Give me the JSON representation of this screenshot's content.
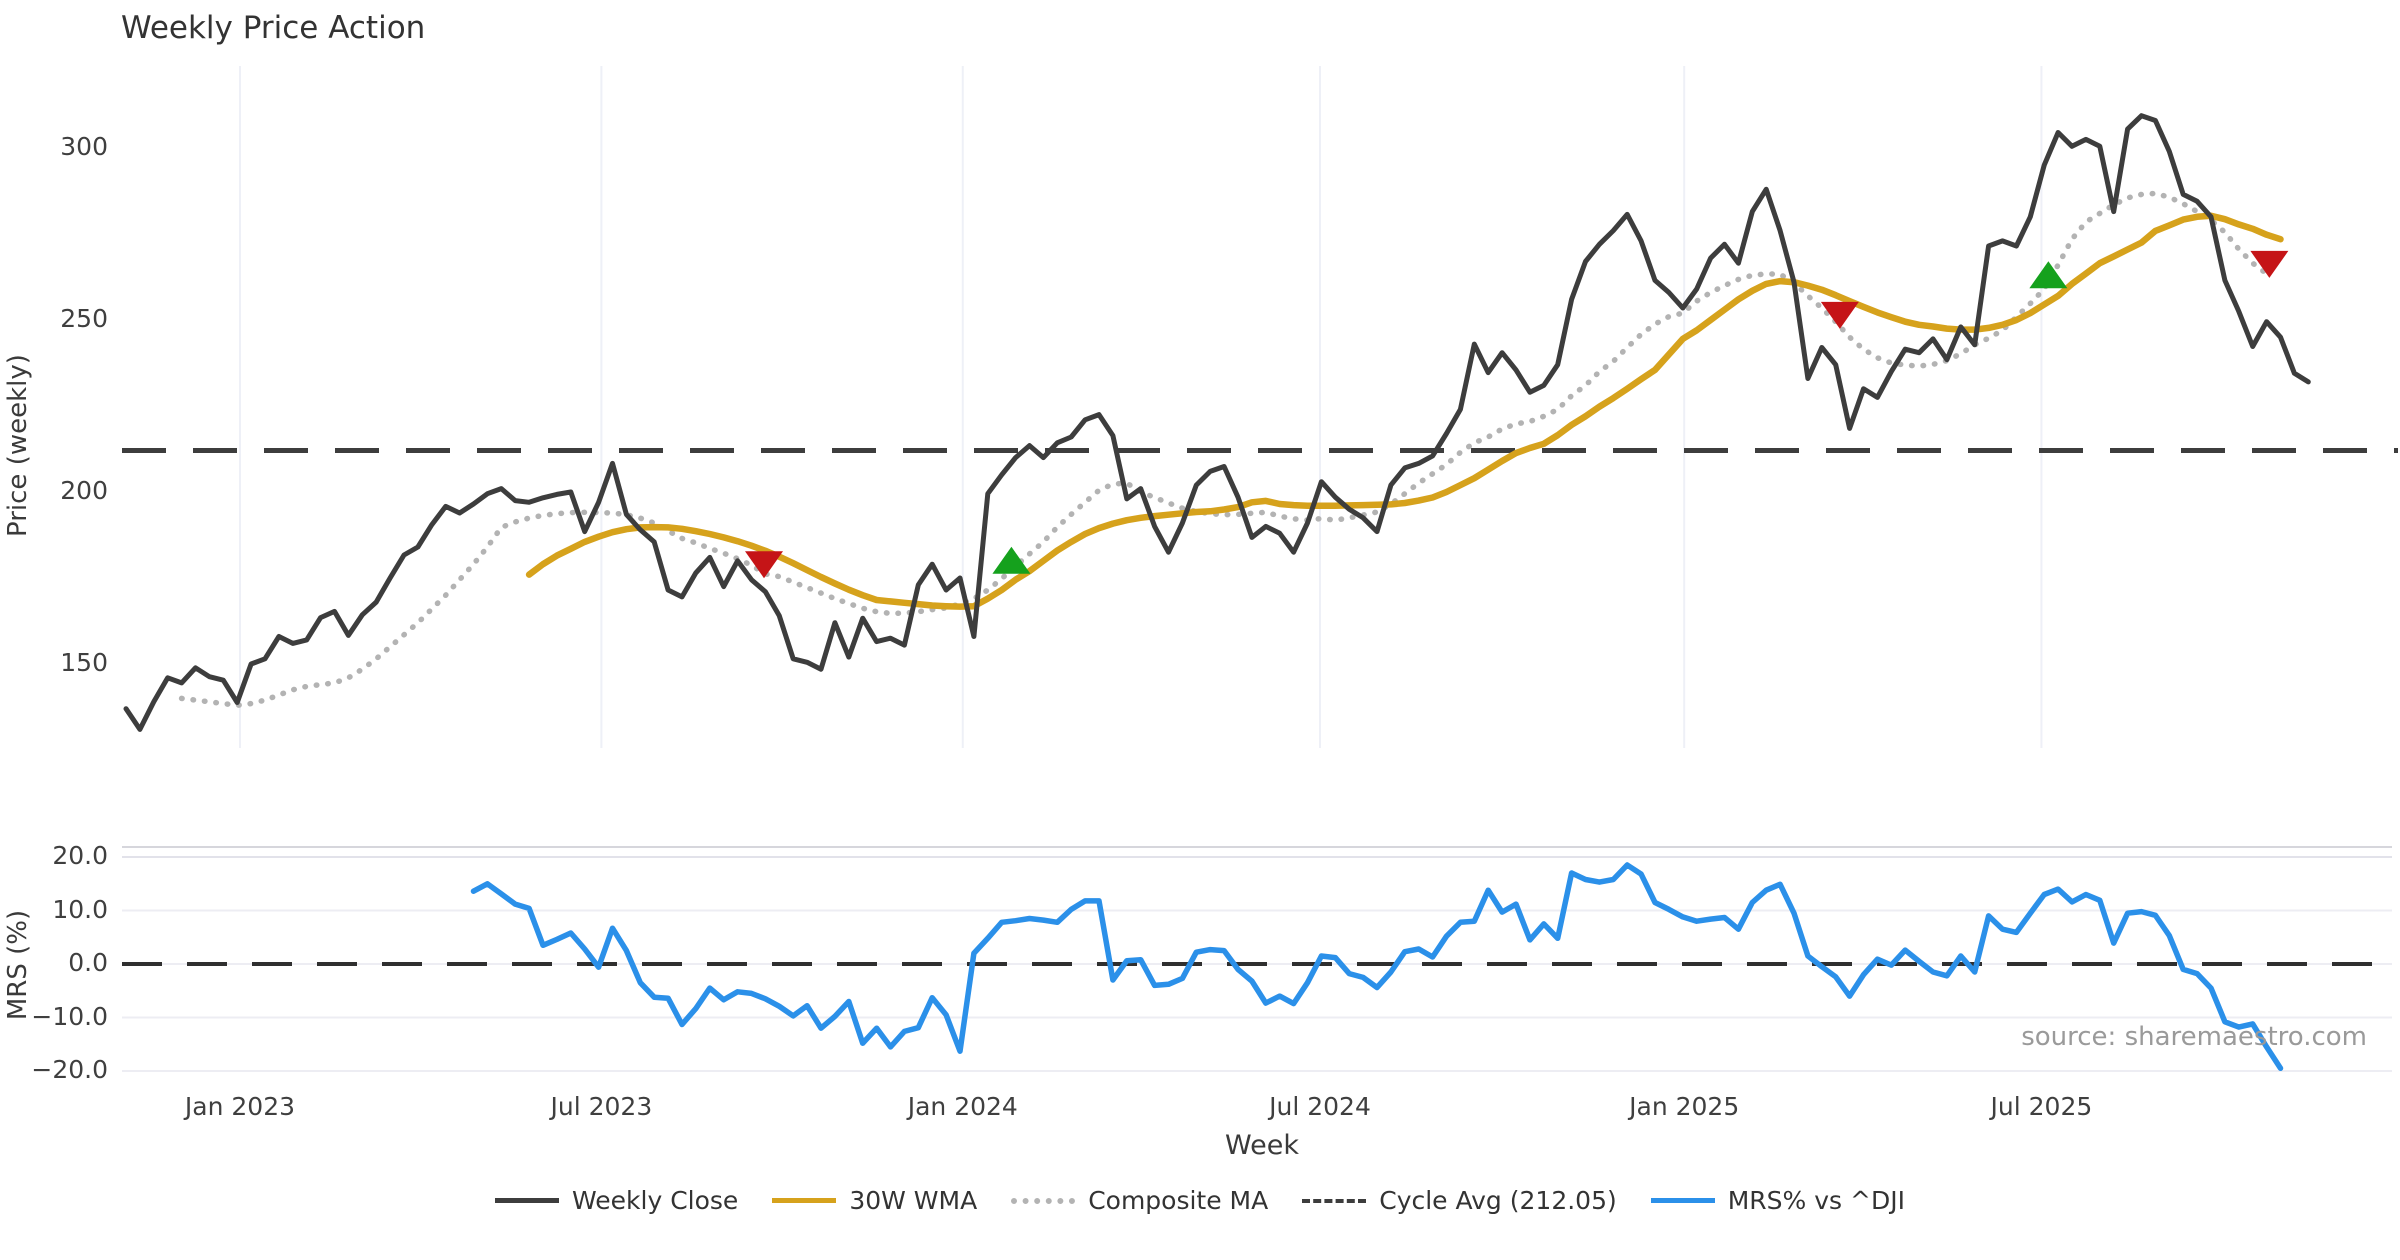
{
  "chart_data": {
    "type": "line",
    "title": "Weekly Price Action",
    "xlabel": "Week",
    "source": "source: sharemaestro.com",
    "x_ticks": [
      {
        "label": "Jan 2023",
        "week": 8.2
      },
      {
        "label": "Jul 2023",
        "week": 34.2
      },
      {
        "label": "Jan 2024",
        "week": 60.2
      },
      {
        "label": "Jul 2024",
        "week": 85.9
      },
      {
        "label": "Jan 2025",
        "week": 112.1
      },
      {
        "label": "Jul 2025",
        "week": 137.8
      }
    ],
    "panels": [
      {
        "name": "price",
        "ylabel": "Price (weekly)",
        "yticks": [
          {
            "label": "150",
            "value": 150
          },
          {
            "label": "200",
            "value": 200
          },
          {
            "label": "250",
            "value": 250
          },
          {
            "label": "300",
            "value": 300
          }
        ],
        "cycle_avg": 212.05,
        "series": [
          {
            "name": "Weekly Close",
            "color": "#3d3d3d",
            "style": "solid",
            "width": 5,
            "start_week": 0,
            "values": [
              137,
              131,
              139,
              146,
              144.5,
              148.9,
              146.3,
              145.3,
              138.8,
              150,
              151.5,
              158,
              156,
              157,
              163.5,
              165.3,
              158.3,
              164.3,
              168,
              175,
              181.7,
              184,
              190.5,
              195.8,
              193.9,
              196.5,
              199.5,
              201,
              197.5,
              197,
              198.3,
              199.3,
              200,
              188.5,
              197,
              208.3,
              193.5,
              189,
              185.5,
              171.5,
              169.5,
              176.5,
              181,
              172.5,
              180,
              174.5,
              171,
              164,
              151.5,
              150.5,
              148.5,
              162,
              152,
              163.3,
              156.5,
              157.5,
              155.5,
              173,
              179,
              171.5,
              175,
              158,
              199.5,
              205,
              210,
              213.5,
              210,
              214.3,
              216,
              221,
              222.5,
              216.4,
              198,
              201,
              190,
              182.5,
              191,
              202,
              206,
              207.4,
              198.5,
              186.8,
              190,
              188,
              182.5,
              191,
              203,
              198.5,
              195,
              192.5,
              188.5,
              202,
              207,
              208.3,
              210.5,
              217,
              224,
              243,
              234.7,
              240.5,
              235.5,
              229,
              231,
              237,
              256,
              267,
              272,
              276,
              280.7,
              273,
              261.5,
              258,
              253.5,
              259,
              268,
              272,
              266.5,
              281.5,
              288,
              276,
              261,
              233,
              242,
              237,
              218.5,
              230,
              227.5,
              235,
              241.5,
              240.5,
              244.5,
              238.5,
              248,
              242.8,
              271.5,
              273,
              271.5,
              280,
              295,
              304.5,
              300.5,
              302.5,
              300.5,
              281.5,
              305.5,
              309.4,
              308,
              299,
              286.5,
              284.5,
              280,
              261.5,
              252.5,
              242.3,
              249.5,
              245,
              234.5,
              232
            ]
          },
          {
            "name": "30W WMA",
            "color": "#d6a21c",
            "style": "solid",
            "width": 6.5,
            "start_week": 29,
            "values": [
              176,
              179,
              181.5,
              183.5,
              185.5,
              187,
              188.3,
              189.2,
              189.7,
              189.8,
              189.7,
              189.3,
              188.6,
              187.8,
              186.8,
              185.7,
              184.4,
              182.9,
              181.2,
              179.3,
              177.3,
              175.3,
              173.4,
              171.6,
              170,
              168.6,
              168.2,
              167.8,
              167.4,
              167,
              166.8,
              166.7,
              166.8,
              169,
              171.5,
              174.5,
              177,
              180,
              183,
              185.5,
              187.8,
              189.5,
              190.8,
              191.8,
              192.5,
              193,
              193.4,
              193.8,
              194.2,
              194.4,
              194.9,
              195.6,
              197,
              197.4,
              196.5,
              196.2,
              196,
              196,
              196,
              196.1,
              196.2,
              196.3,
              196.4,
              196.8,
              197.5,
              198.4,
              200,
              202,
              204,
              206.5,
              209,
              211.3,
              212.8,
              214,
              216.5,
              219.5,
              222,
              224.8,
              227.3,
              230,
              232.8,
              235.5,
              240,
              244.5,
              247,
              250,
              253,
              256,
              258.5,
              260.5,
              261.3,
              261,
              260,
              258.8,
              257.2,
              255.5,
              253.8,
              252.2,
              250.8,
              249.5,
              248.6,
              248.1,
              247.5,
              247.2,
              247.2,
              247.7,
              248.6,
              250,
              252,
              254.5,
              257,
              260.5,
              263.5,
              266.5,
              268.5,
              270.5,
              272.5,
              275.9,
              277.5,
              279.2,
              280,
              280.3,
              279.3,
              277.8,
              276.5,
              274.8,
              273.5
            ]
          },
          {
            "name": "Composite MA",
            "color": "#b3b3b3",
            "style": "dotted",
            "width": 5.5,
            "start_week": 4,
            "values": [
              140,
              139.5,
              139,
              138.5,
              138,
              138.5,
              139.5,
              141,
              142.5,
              143.5,
              144,
              144.5,
              146,
              148.5,
              151.5,
              155,
              158.5,
              162,
              166,
              170,
              174.5,
              179,
              184,
              189.7,
              191.3,
              192.4,
              193.2,
              193.7,
              194,
              194.1,
              194,
              193.9,
              193.4,
              192.4,
              191,
              188.7,
              186.5,
              185.2,
              183.6,
              182.2,
              180.6,
              178.7,
              176.2,
              175.4,
              173.8,
              172.2,
              170.6,
              169,
              167.6,
              166.2,
              165.2,
              164.7,
              164.8,
              165.2,
              165.8,
              166.3,
              167.5,
              169,
              171.5,
              174.8,
              178.5,
              182,
              185.5,
              189.8,
              193.5,
              197,
              200.5,
              202.3,
              202.6,
              200,
              198.4,
              196.8,
              195.3,
              194.3,
              193.7,
              193.4,
              193.5,
              193.8,
              194.1,
              193,
              192.2,
              191.8,
              192.3,
              191.8,
              192.5,
              193.3,
              194.2,
              196.5,
              199.5,
              202.6,
              205.3,
              208,
              211.5,
              214.3,
              216,
              218.3,
              219.8,
              220.5,
              222,
              224,
              228,
              231,
              235,
              238,
              242,
              245.8,
              248.8,
              251,
              252,
              255.5,
              258,
              260,
              261.8,
              263,
              263.4,
              263.3,
              260.8,
              257,
              253.5,
              249.5,
              245,
              241.5,
              239,
              237.5,
              236.9,
              236.6,
              237.1,
              238.2,
              240.2,
              242.8,
              244.7,
              247,
              250.9,
              254.8,
              259,
              266,
              273.5,
              278.5,
              281,
              283.5,
              285.5,
              286.5,
              286.8,
              285.7,
              283.8,
              281.5,
              279,
              275.5,
              270.6,
              266.5,
              263.5
            ]
          }
        ],
        "markers": {
          "sell": {
            "color": "#c51417",
            "points": [
              {
                "week": 45.9,
                "value": 179
              },
              {
                "week": 123.3,
                "value": 251.5
              },
              {
                "week": 154.2,
                "value": 266.3
              }
            ]
          },
          "buy": {
            "color": "#15a11d",
            "points": [
              {
                "week": 63.7,
                "value": 180
              },
              {
                "week": 138.3,
                "value": 263
              }
            ]
          }
        }
      },
      {
        "name": "mrs",
        "ylabel": "MRS (%)",
        "yticks": [
          {
            "label": "20.0",
            "value": 20
          },
          {
            "label": "10.0",
            "value": 10
          },
          {
            "label": "0.0",
            "value": 0
          },
          {
            "label": "−10.0",
            "value": -10
          },
          {
            "label": "−20.0",
            "value": -20
          }
        ],
        "zero_line": 0,
        "series": [
          {
            "name": "MRS% vs ^DJI",
            "color": "#2b90e9",
            "style": "solid",
            "width": 5.5,
            "start_week": 25,
            "values": [
              13.6,
              15,
              13.1,
              11.2,
              10.4,
              3.5,
              4.6,
              5.8,
              2.8,
              -0.6,
              6.7,
              2.5,
              -3.5,
              -6.2,
              -6.4,
              -11.3,
              -8.3,
              -4.5,
              -6.7,
              -5.2,
              -5.5,
              -6.5,
              -7.9,
              -9.7,
              -7.8,
              -12,
              -9.8,
              -7,
              -14.8,
              -12,
              -15.5,
              -12.6,
              -11.9,
              -6.3,
              -9.5,
              -16.3,
              2,
              4.8,
              7.8,
              8.1,
              8.5,
              8.2,
              7.8,
              10.2,
              11.8,
              11.8,
              -3,
              0.6,
              0.8,
              -4,
              -3.8,
              -2.7,
              2.2,
              2.7,
              2.5,
              -1,
              -3.2,
              -7.3,
              -6,
              -7.4,
              -3.5,
              1.5,
              1.2,
              -1.8,
              -2.5,
              -4.4,
              -1.5,
              2.3,
              2.8,
              1.3,
              5.2,
              7.8,
              8,
              13.8,
              9.7,
              11.2,
              4.5,
              7.5,
              4.8,
              17,
              15.8,
              15.3,
              15.8,
              18.5,
              16.8,
              11.5,
              10.2,
              8.8,
              8,
              8.4,
              8.7,
              6.5,
              11.5,
              13.8,
              14.9,
              9.5,
              1.5,
              -0.5,
              -2.4,
              -6,
              -2,
              0.9,
              -0.2,
              2.6,
              0.5,
              -1.5,
              -2.2,
              1.5,
              -1.5,
              9,
              6.5,
              5.9,
              9.5,
              13,
              14,
              11.6,
              13,
              11.9,
              3.9,
              9.5,
              9.8,
              9.1,
              5.3,
              -1,
              -1.8,
              -4.5,
              -10.8,
              -11.8,
              -11.2,
              -15.5,
              -19.5
            ]
          }
        ]
      }
    ],
    "legend": [
      {
        "label": "Weekly Close",
        "color": "#3d3d3d",
        "style": "solid"
      },
      {
        "label": "30W WMA",
        "color": "#d6a21c",
        "style": "solid"
      },
      {
        "label": "Composite MA",
        "color": "#b3b3b3",
        "style": "dotted"
      },
      {
        "label": "Cycle Avg (212.05)",
        "color": "#3d3d3d",
        "style": "dashed"
      },
      {
        "label": "MRS% vs ^DJI",
        "color": "#2b90e9",
        "style": "solid"
      }
    ]
  }
}
